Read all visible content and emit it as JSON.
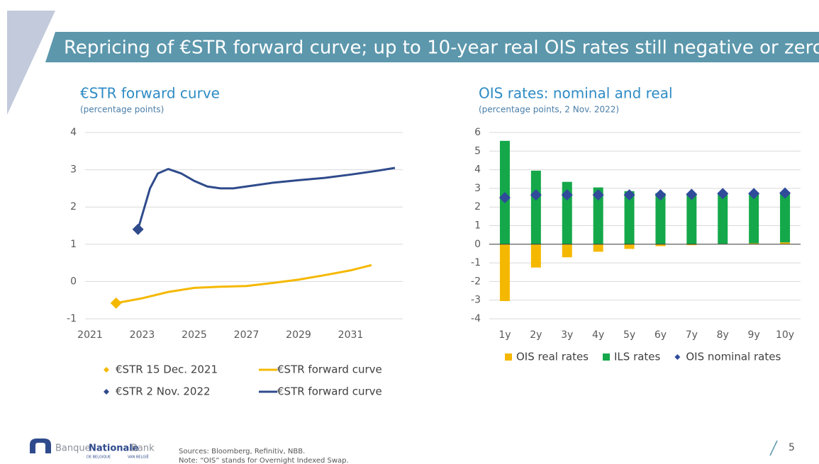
{
  "header": {
    "title": "Repricing of €STR forward curve; up to 10-year real OIS rates still negative or zero"
  },
  "chart_data": [
    {
      "type": "line",
      "title": "€STR forward curve",
      "subtitle": "(percentage points)",
      "xlim": [
        2021,
        2033
      ],
      "xticks": [
        2021,
        2023,
        2025,
        2027,
        2029,
        2031
      ],
      "ylim": [
        -1,
        4
      ],
      "yticks": [
        -1,
        0,
        1,
        2,
        3,
        4
      ],
      "grid": true,
      "series": [
        {
          "name": "€STR 15 Dec. 2021",
          "type": "scatter",
          "color": "#f5b800",
          "x": [
            2022
          ],
          "values": [
            -0.58
          ]
        },
        {
          "name": "€STR forward curve",
          "type": "line",
          "color": "#f5b800",
          "x": [
            2022,
            2023,
            2024,
            2025,
            2026,
            2027,
            2028,
            2029,
            2030,
            2031,
            2031.8
          ],
          "values": [
            -0.58,
            -0.45,
            -0.28,
            -0.17,
            -0.14,
            -0.12,
            -0.04,
            0.05,
            0.17,
            0.3,
            0.44
          ]
        },
        {
          "name": "€STR 2 Nov. 2022",
          "type": "scatter",
          "color": "#2f4b8c",
          "x": [
            2022.84
          ],
          "values": [
            1.4
          ]
        },
        {
          "name": "€STR forward curve",
          "type": "line",
          "color": "#2f4b8c",
          "x": [
            2022.84,
            2023.3,
            2023.6,
            2024,
            2024.5,
            2025,
            2025.5,
            2026,
            2026.5,
            2027,
            2028,
            2029,
            2030,
            2031,
            2032,
            2032.7
          ],
          "values": [
            1.4,
            2.5,
            2.9,
            3.02,
            2.9,
            2.7,
            2.55,
            2.5,
            2.5,
            2.55,
            2.65,
            2.72,
            2.78,
            2.87,
            2.97,
            3.05
          ]
        }
      ]
    },
    {
      "type": "bar",
      "stacked": true,
      "title": "OIS rates: nominal and real",
      "subtitle": "(percentage points, 2 Nov. 2022)",
      "categories": [
        "1y",
        "2y",
        "3y",
        "4y",
        "5y",
        "6y",
        "7y",
        "8y",
        "9y",
        "10y"
      ],
      "ylim": [
        -4,
        6
      ],
      "yticks": [
        -4,
        -3,
        -2,
        -1,
        0,
        1,
        2,
        3,
        4,
        5,
        6
      ],
      "grid": true,
      "series": [
        {
          "name": "OIS real rates",
          "type": "bar",
          "color": "#f5b800",
          "values": [
            -3.05,
            -1.25,
            -0.7,
            -0.4,
            -0.25,
            -0.1,
            -0.05,
            0.02,
            0.05,
            0.1
          ]
        },
        {
          "name": "ILS rates",
          "type": "bar",
          "color": "#14a84a",
          "values": [
            5.55,
            3.95,
            3.35,
            3.05,
            2.85,
            2.75,
            2.72,
            2.7,
            2.68,
            2.65
          ]
        },
        {
          "name": "OIS nominal rates",
          "type": "scatter",
          "color": "#2f4b9a",
          "values": [
            2.5,
            2.65,
            2.65,
            2.65,
            2.65,
            2.65,
            2.68,
            2.72,
            2.72,
            2.75
          ]
        }
      ]
    }
  ],
  "footer": {
    "sources": "Sources: Bloomberg, Refinitiv, NBB.",
    "note": "Note: “OIS” stands for Overnight Indexed Swap.",
    "page": 5,
    "logo": {
      "banque": "Banque",
      "nationale": "Nationale",
      "bank": "Bank",
      "de_belgique": "DE BELGIQUE",
      "van_belgie": "VAN BELGIË"
    }
  }
}
